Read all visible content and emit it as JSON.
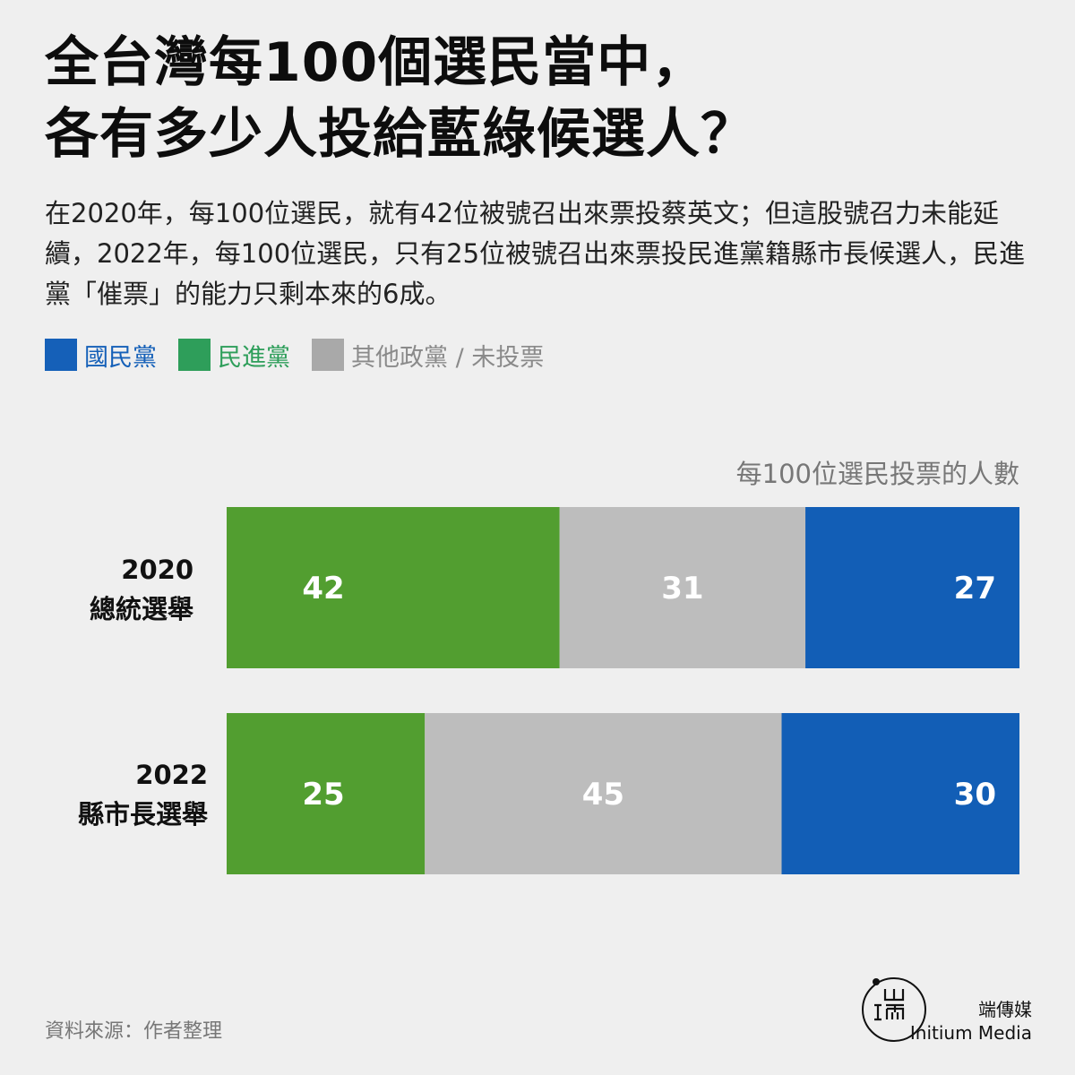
{
  "header": {
    "title_line1": "全台灣每100個選民當中，",
    "title_line2": "各有多少人投給藍綠候選人？",
    "description": "在2020年，每100位選民，就有42位被號召出來票投蔡英文；但這股號召力未能延續，2022年，每100位選民，只有25位被號召出來票投民進黨籍縣市長候選人，民進黨「催票」的能力只剩本來的6成。"
  },
  "legend": [
    {
      "label": "國民黨",
      "color": "#1560b8",
      "text_color": "#1560b8"
    },
    {
      "label": "民進黨",
      "color": "#2e9e5a",
      "text_color": "#2e9e5a"
    },
    {
      "label": "其他政黨 / 未投票",
      "color": "#a9a9a9",
      "text_color": "#8a8a8a"
    }
  ],
  "chart_data": {
    "type": "bar",
    "orientation": "horizontal",
    "stacked": true,
    "categories": [
      {
        "year": "2020",
        "name": "總統選舉"
      },
      {
        "year": "2022",
        "name": "縣市長選舉"
      }
    ],
    "series": [
      {
        "name": "民進黨",
        "color": "#529e30",
        "values": [
          42,
          25
        ]
      },
      {
        "name": "其他政黨 / 未投票",
        "color": "#bdbdbd",
        "values": [
          31,
          45
        ]
      },
      {
        "name": "國民黨",
        "color": "#125eb6",
        "values": [
          27,
          30
        ]
      }
    ],
    "axis_note": "每100位選民投票的人數",
    "xlim": [
      0,
      100
    ],
    "grid": false,
    "legend_position": "top-left"
  },
  "footer": {
    "source": "資料來源：作者整理",
    "brand_cn": "端傳媒",
    "brand_en": "Initium Media",
    "logo_glyphs": "山 I 而"
  }
}
